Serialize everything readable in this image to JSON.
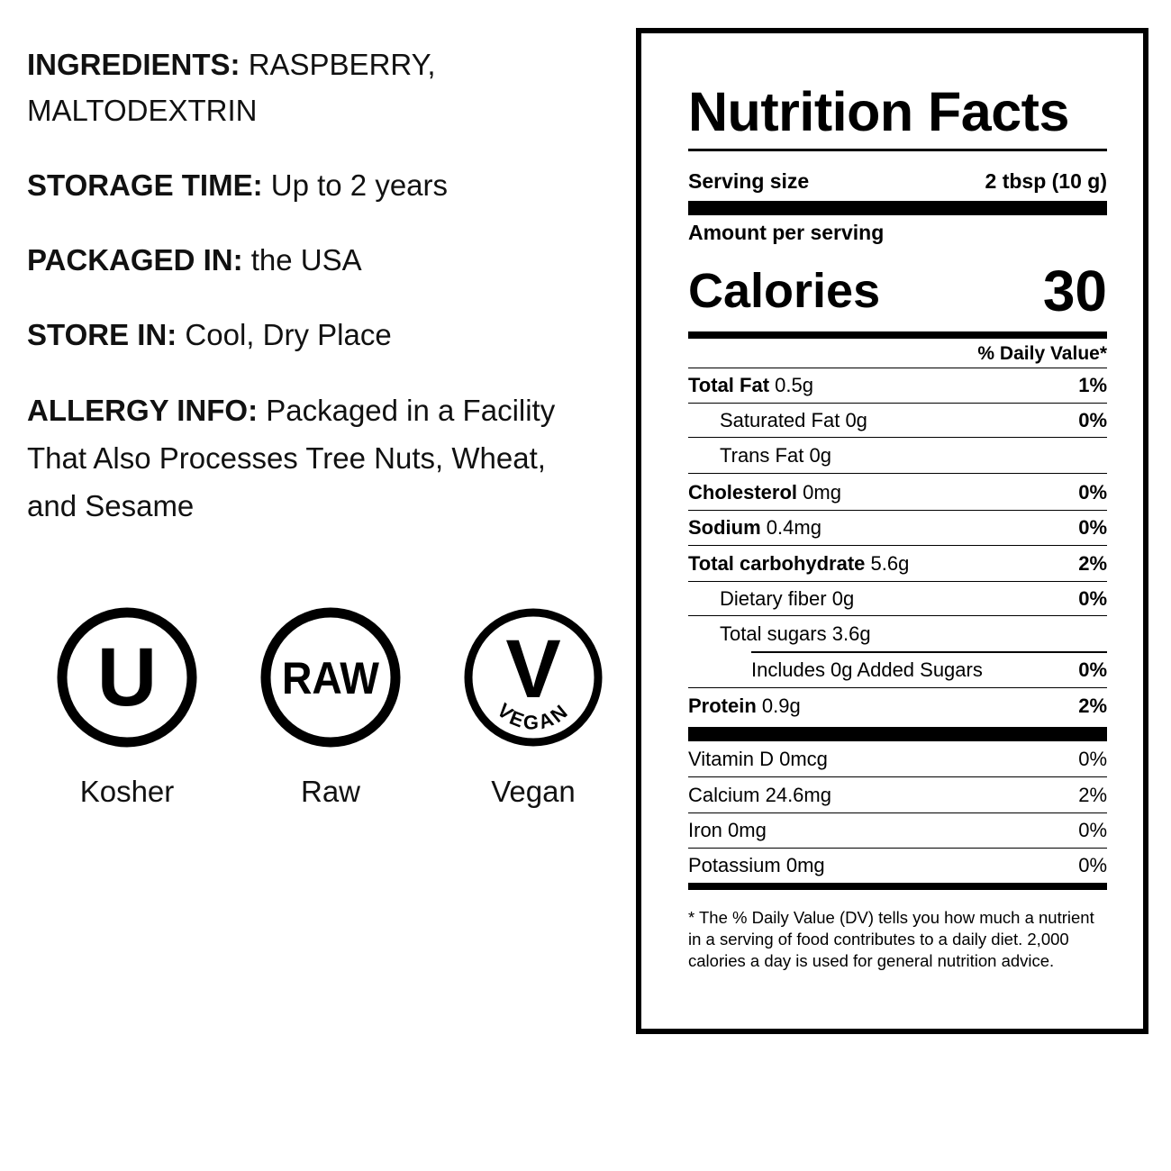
{
  "info": {
    "ingredients": {
      "label": "INGREDIENTS:",
      "value": "RASPBERRY,",
      "value2": "MALTODEXTRIN"
    },
    "storage_time": {
      "label": "STORAGE TIME:",
      "value": "Up to 2 years"
    },
    "packaged_in": {
      "label": "PACKAGED IN:",
      "value": "the USA"
    },
    "store_in": {
      "label": "STORE IN:",
      "value": "Cool, Dry Place"
    },
    "allergy": {
      "label": "ALLERGY INFO:",
      "line1": "Packaged in a Facility",
      "line2": "That Also Processes Tree Nuts, Wheat,",
      "line3": "and Sesame"
    }
  },
  "badges": [
    {
      "icon": "kosher-u-icon",
      "symbol": "U",
      "label": "Kosher"
    },
    {
      "icon": "raw-icon",
      "symbol": "RAW",
      "label": "Raw"
    },
    {
      "icon": "vegan-v-icon",
      "symbol": "V",
      "arc_text": "VEGAN",
      "label": "Vegan"
    }
  ],
  "nutrition": {
    "title": "Nutrition Facts",
    "serving_label": "Serving size",
    "serving_value": "2 tbsp (10 g)",
    "amount_label": "Amount per serving",
    "calories_label": "Calories",
    "calories_value": "30",
    "dv_header": "% Daily Value*",
    "rows": [
      {
        "name": "Total Fat",
        "amount": "0.5g",
        "dv": "1%"
      },
      {
        "name": "Saturated Fat",
        "amount": "0g",
        "dv": "0%"
      },
      {
        "name": "Trans Fat",
        "amount": "0g",
        "dv": ""
      },
      {
        "name": "Cholesterol",
        "amount": "0mg",
        "dv": "0%"
      },
      {
        "name": "Sodium",
        "amount": "0.4mg",
        "dv": "0%"
      },
      {
        "name": "Total carbohydrate",
        "amount": "5.6g",
        "dv": "2%"
      },
      {
        "name": "Dietary fiber",
        "amount": "0g",
        "dv": "0%"
      },
      {
        "name": "Total sugars",
        "amount": "3.6g",
        "dv": ""
      },
      {
        "name": "Includes 0g Added Sugars",
        "amount": "",
        "dv": "0%"
      },
      {
        "name": "Protein",
        "amount": "0.9g",
        "dv": "2%"
      }
    ],
    "vitamins": [
      {
        "name": "Vitamin D",
        "amount": "0mcg",
        "dv": "0%"
      },
      {
        "name": "Calcium",
        "amount": "24.6mg",
        "dv": "2%"
      },
      {
        "name": "Iron",
        "amount": "0mg",
        "dv": "0%"
      },
      {
        "name": "Potassium",
        "amount": "0mg",
        "dv": "0%"
      }
    ],
    "footnote": "* The % Daily Value (DV) tells you how much a nutrient in a serving of food contributes to a daily diet. 2,000 calories a day is used for general nutrition advice."
  }
}
